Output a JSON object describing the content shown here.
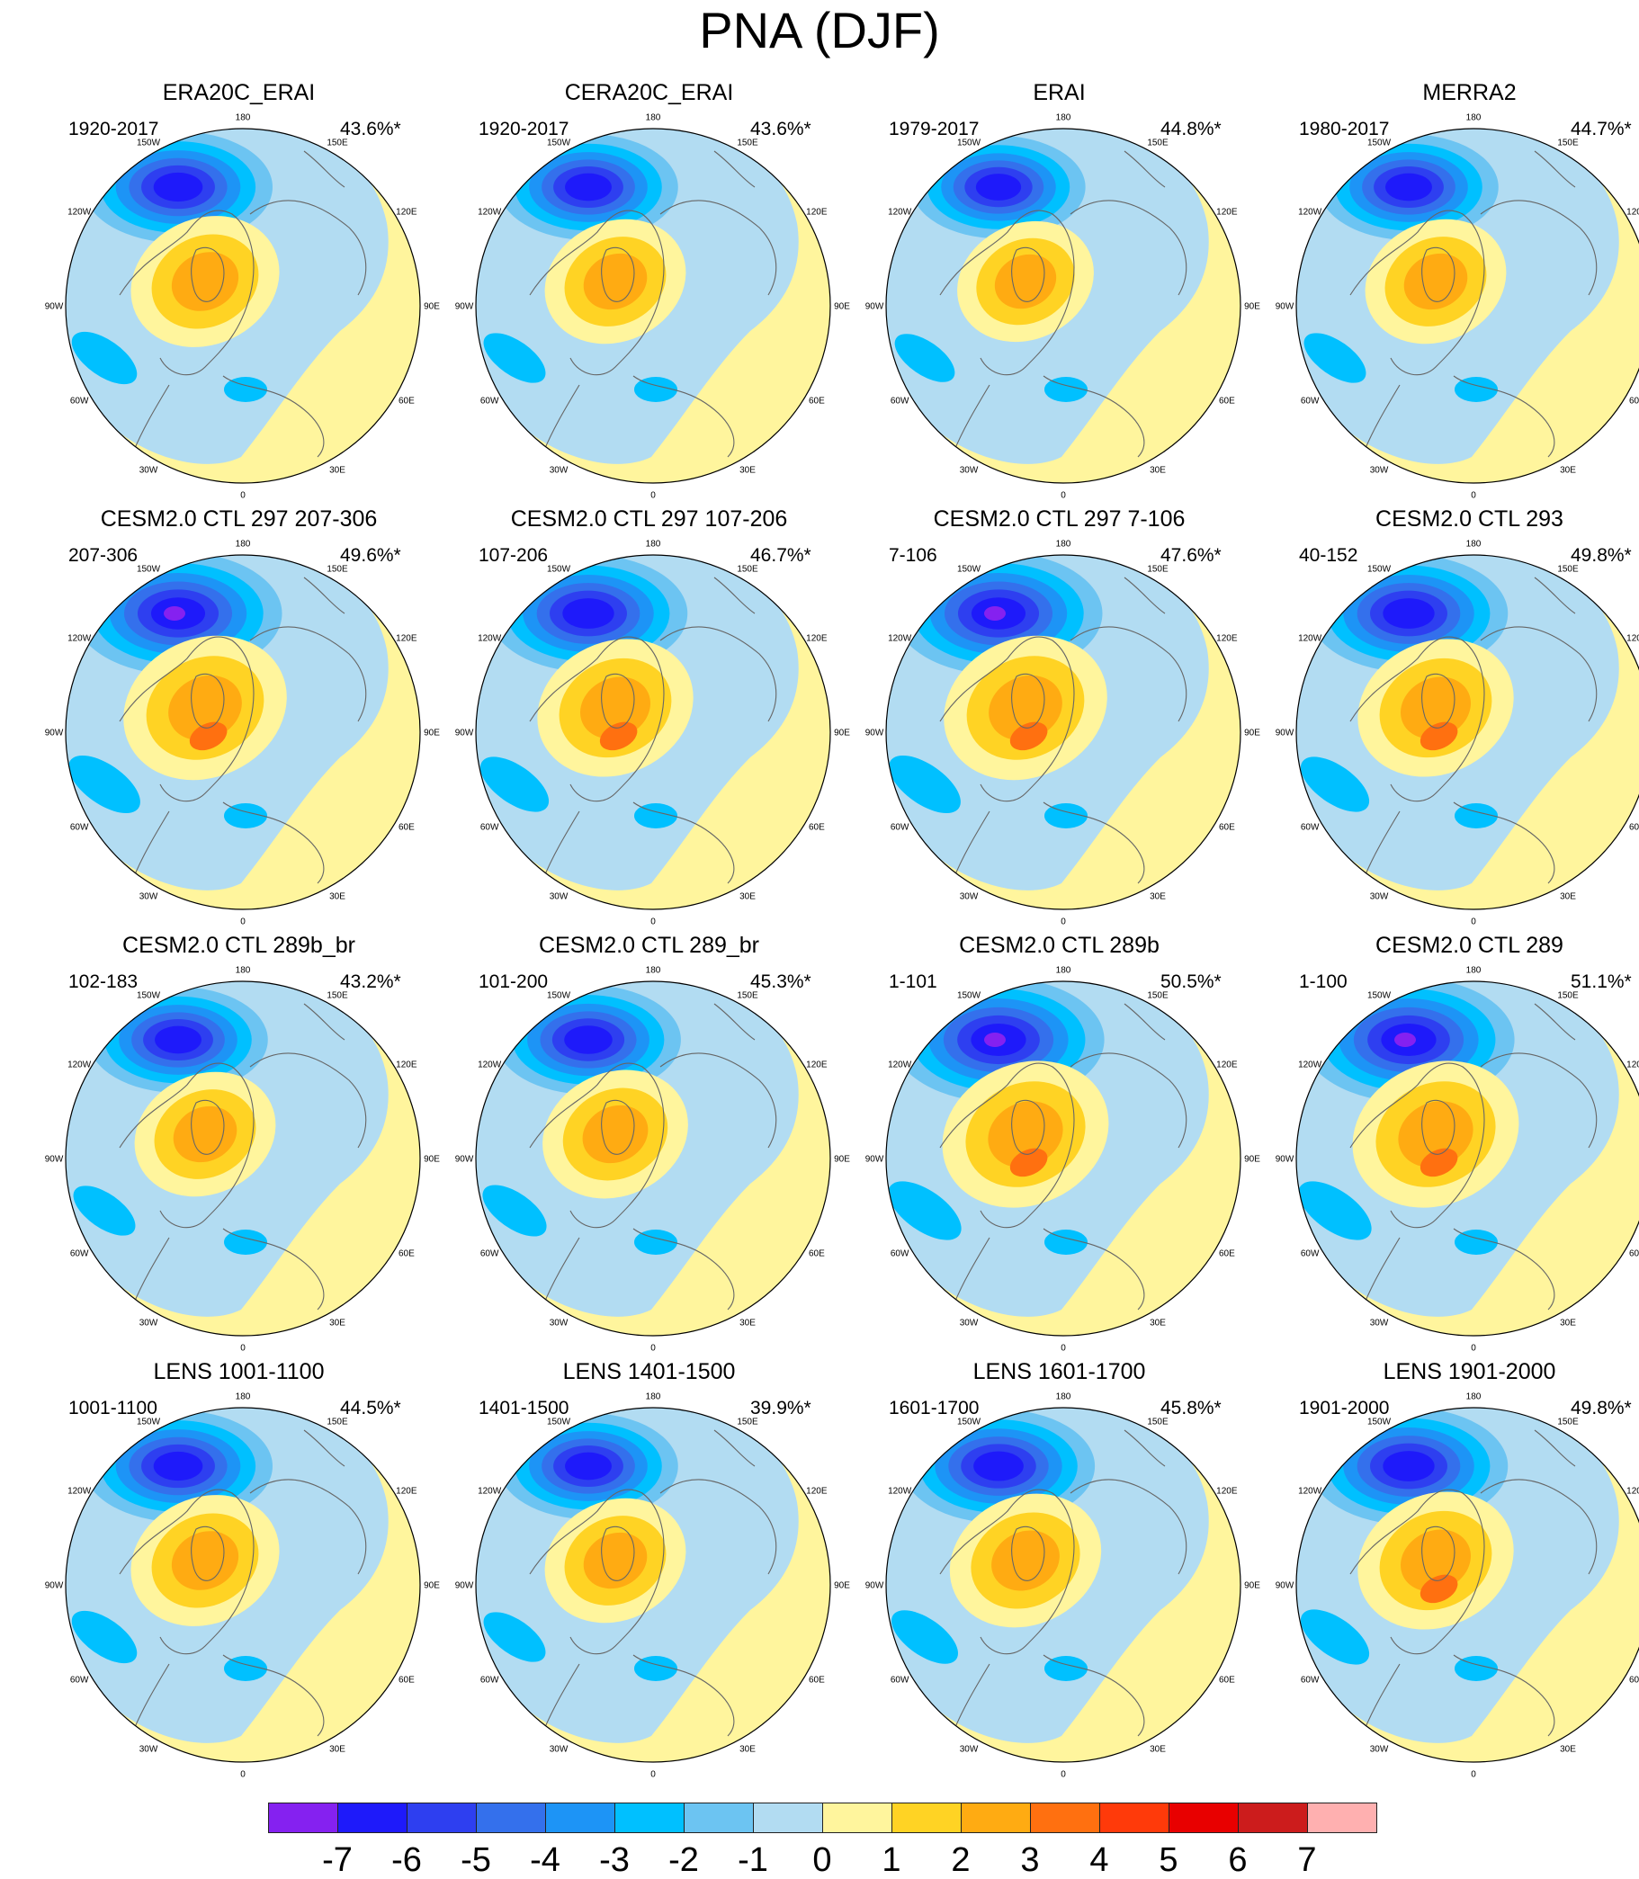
{
  "title": "PNA (DJF)",
  "panels": [
    {
      "title": "ERA20C_ERAI",
      "years": "1920-2017",
      "pct": "43.6%*",
      "s": 1.0
    },
    {
      "title": "CERA20C_ERAI",
      "years": "1920-2017",
      "pct": "43.6%*",
      "s": 0.95
    },
    {
      "title": "ERAI",
      "years": "1979-2017",
      "pct": "44.8%*",
      "s": 0.92
    },
    {
      "title": "MERRA2",
      "years": "1980-2017",
      "pct": "44.7%*",
      "s": 0.95
    },
    {
      "title": "CESM2.0 CTL 297 207-306",
      "years": "207-306",
      "pct": "49.6%*",
      "s": 1.1
    },
    {
      "title": "CESM2.0 CTL 297 107-206",
      "years": "107-206",
      "pct": "46.7%*",
      "s": 1.05
    },
    {
      "title": "CESM2.0 CTL 297 7-106",
      "years": "7-106",
      "pct": "47.6%*",
      "s": 1.1
    },
    {
      "title": "CESM2.0 CTL 293",
      "years": "40-152",
      "pct": "49.8%*",
      "s": 1.05
    },
    {
      "title": "CESM2.0 CTL 289b_br",
      "years": "102-183",
      "pct": "43.2%*",
      "s": 0.95
    },
    {
      "title": "CESM2.0 CTL 289_br",
      "years": "101-200",
      "pct": "45.3%*",
      "s": 0.98
    },
    {
      "title": "CESM2.0 CTL 289b",
      "years": "1-101",
      "pct": "50.5%*",
      "s": 1.12
    },
    {
      "title": "CESM2.0 CTL 289",
      "years": "1-100",
      "pct": "51.1%*",
      "s": 1.12
    },
    {
      "title": "LENS 1001-1100",
      "years": "1001-1100",
      "pct": "44.5%*",
      "s": 1.0
    },
    {
      "title": "LENS 1401-1500",
      "years": "1401-1500",
      "pct": "39.9%*",
      "s": 0.95
    },
    {
      "title": "LENS 1601-1700",
      "years": "1601-1700",
      "pct": "45.8%*",
      "s": 1.02
    },
    {
      "title": "LENS 1901-2000",
      "years": "1901-2000",
      "pct": "49.8%*",
      "s": 1.05
    }
  ],
  "lon_labels": [
    "180",
    "150E",
    "120E",
    "90E",
    "60E",
    "30E",
    "0",
    "30W",
    "60W",
    "90W",
    "120W",
    "150W"
  ],
  "colorbar": {
    "colors": [
      "#8521f0",
      "#1e1afa",
      "#2e3ff0",
      "#3470ec",
      "#1d94f6",
      "#00c0ff",
      "#6cc4f2",
      "#b2dcf2",
      "#fff59d",
      "#ffd324",
      "#ffab12",
      "#ff7010",
      "#ff3a0a",
      "#e80000",
      "#cc1c1c",
      "#ffb0b0"
    ],
    "labels": [
      "-7",
      "-6",
      "-5",
      "-4",
      "-3",
      "-2",
      "-1",
      "0",
      "1",
      "2",
      "3",
      "4",
      "5",
      "6",
      "7"
    ]
  }
}
